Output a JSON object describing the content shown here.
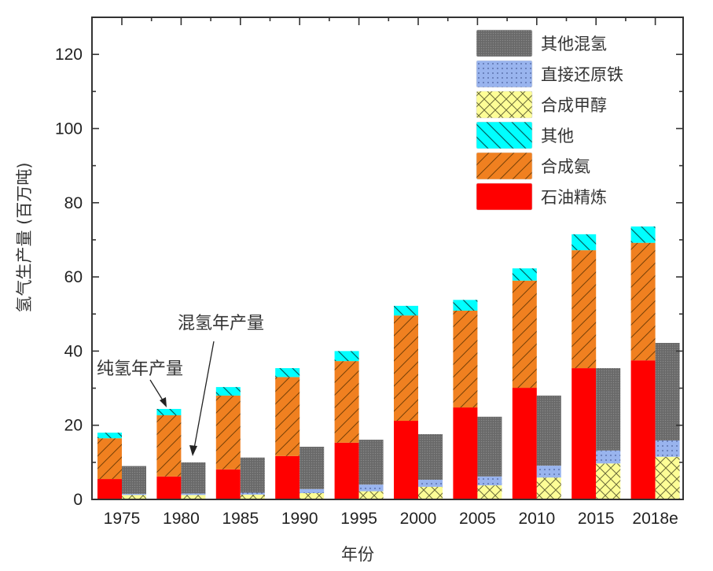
{
  "chart_data": {
    "type": "bar",
    "stacked": true,
    "grouped": true,
    "xlabel": "年份",
    "ylabel": "氢气生产量 (百万吨)",
    "ylim": [
      0,
      130
    ],
    "yticks": [
      0,
      20,
      40,
      60,
      80,
      100,
      120
    ],
    "categories": [
      "1975",
      "1980",
      "1985",
      "1990",
      "1995",
      "2000",
      "2005",
      "2010",
      "2015",
      "2018e"
    ],
    "legend_position": "top-right",
    "groups": [
      {
        "name": "纯氢年产量",
        "series": [
          {
            "name": "石油精炼",
            "color": "#ff0000",
            "pattern": "solid",
            "values": [
              5.5,
              6.2,
              8.1,
              11.7,
              15.3,
              21.2,
              24.8,
              30.1,
              35.4,
              37.5
            ]
          },
          {
            "name": "合成氨",
            "color": "#f08020",
            "pattern": "hatch-forward",
            "values": [
              11.0,
              16.5,
              19.9,
              21.3,
              22.0,
              28.4,
              26.1,
              28.9,
              31.8,
              31.7
            ]
          },
          {
            "name": "其他",
            "color": "#00ffff",
            "pattern": "hatch-back",
            "values": [
              1.5,
              1.7,
              2.3,
              2.4,
              2.7,
              2.6,
              2.9,
              3.3,
              4.3,
              4.4
            ]
          }
        ]
      },
      {
        "name": "混氢年产量",
        "series": [
          {
            "name": "合成甲醇",
            "color": "#fdfd96",
            "pattern": "crosshatch",
            "values": [
              1.2,
              1.2,
              1.3,
              1.7,
              2.2,
              3.4,
              3.8,
              5.9,
              9.7,
              11.5
            ]
          },
          {
            "name": "直接还原铁",
            "color": "#99b4ee",
            "pattern": "dots",
            "values": [
              0.3,
              0.4,
              0.5,
              1.1,
              1.8,
              1.9,
              2.4,
              3.2,
              3.5,
              4.4
            ]
          },
          {
            "name": "其他混氢",
            "color": "#6e6e6e",
            "pattern": "checker",
            "values": [
              7.5,
              8.4,
              9.5,
              11.4,
              12.1,
              12.3,
              16.1,
              18.9,
              22.2,
              26.3
            ]
          }
        ]
      }
    ],
    "legend": [
      "其他混氢",
      "直接还原铁",
      "合成甲醇",
      "其他",
      "合成氨",
      "石油精炼"
    ],
    "annotations": [
      {
        "text": "纯氢年产量",
        "target_category": "1980",
        "target_group": "纯氢年产量"
      },
      {
        "text": "混氢年产量",
        "target_category": "1980",
        "target_group": "混氢年产量"
      }
    ]
  }
}
